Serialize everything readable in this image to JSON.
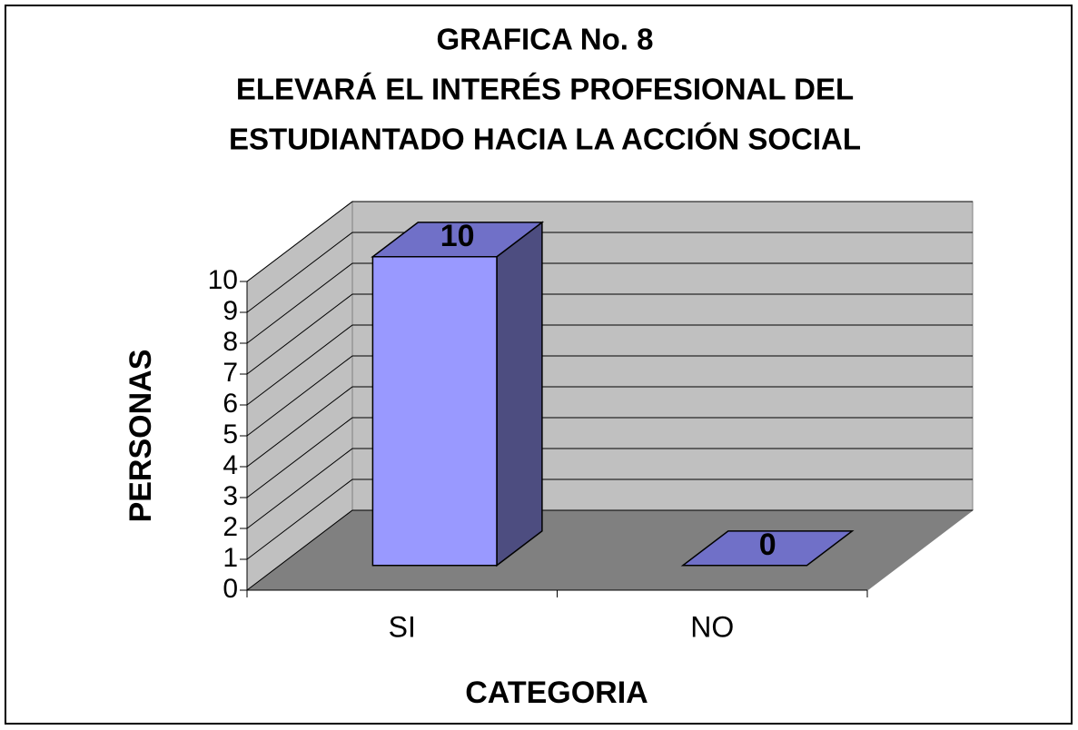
{
  "chart_data": {
    "type": "bar3d",
    "title": [
      "GRAFICA No. 8",
      "ELEVARÁ  EL INTERÉS PROFESIONAL DEL",
      "ESTUDIANTADO HACIA LA ACCIÓN SOCIAL"
    ],
    "x_label": "CATEGORIA",
    "y_label": "PERSONAS",
    "categories": [
      "SI",
      "NO"
    ],
    "values": [
      10,
      0
    ],
    "color": "#9999ff",
    "ylim": [
      0,
      10
    ],
    "yticks": [
      0,
      1,
      2,
      3,
      4,
      5,
      6,
      7,
      8,
      9,
      10
    ],
    "grid": true
  }
}
